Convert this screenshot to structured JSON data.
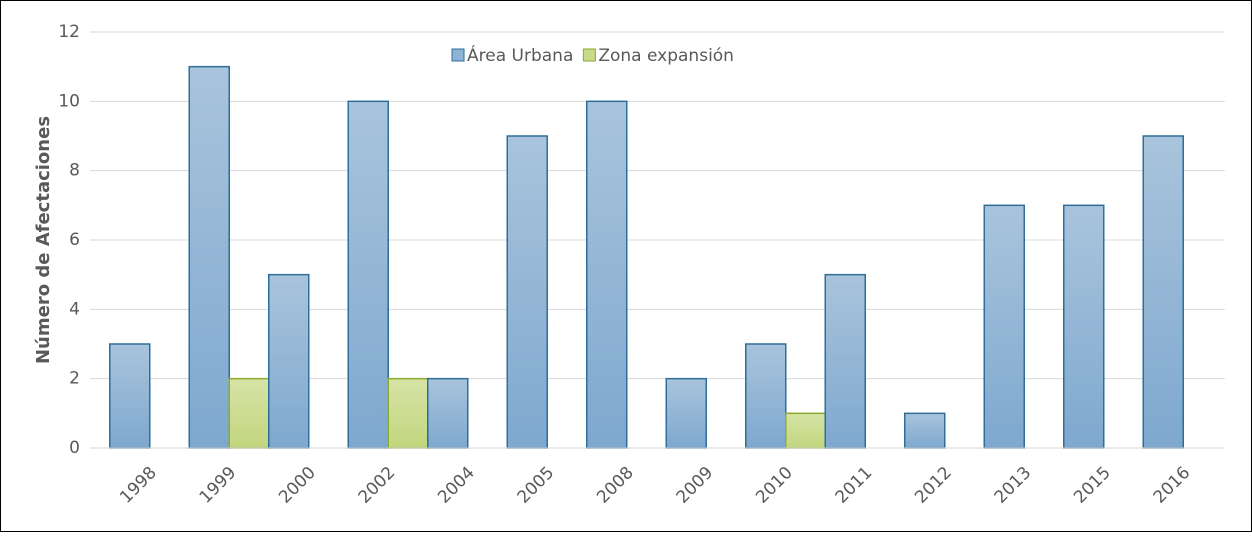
{
  "chart_data": {
    "type": "bar",
    "y_label": "Número de Afectaciones",
    "categories": [
      "1998",
      "1999",
      "2000",
      "2002",
      "2004",
      "2005",
      "2008",
      "2009",
      "2010",
      "2011",
      "2012",
      "2013",
      "2015",
      "2016"
    ],
    "series": [
      {
        "name": "Área Urbana",
        "color": "#8fb3d6",
        "values": [
          3,
          11,
          5,
          10,
          2,
          9,
          10,
          2,
          3,
          5,
          1,
          7,
          7,
          9
        ]
      },
      {
        "name": "Zona expansión",
        "color": "#c9d98a",
        "values": [
          0,
          2,
          0,
          2,
          0,
          0,
          0,
          0,
          1,
          0,
          0,
          0,
          0,
          0
        ]
      }
    ],
    "ylim": [
      0,
      12
    ],
    "yticks": [
      0,
      2,
      4,
      6,
      8,
      10,
      12
    ],
    "grid": true,
    "legend": "top"
  }
}
